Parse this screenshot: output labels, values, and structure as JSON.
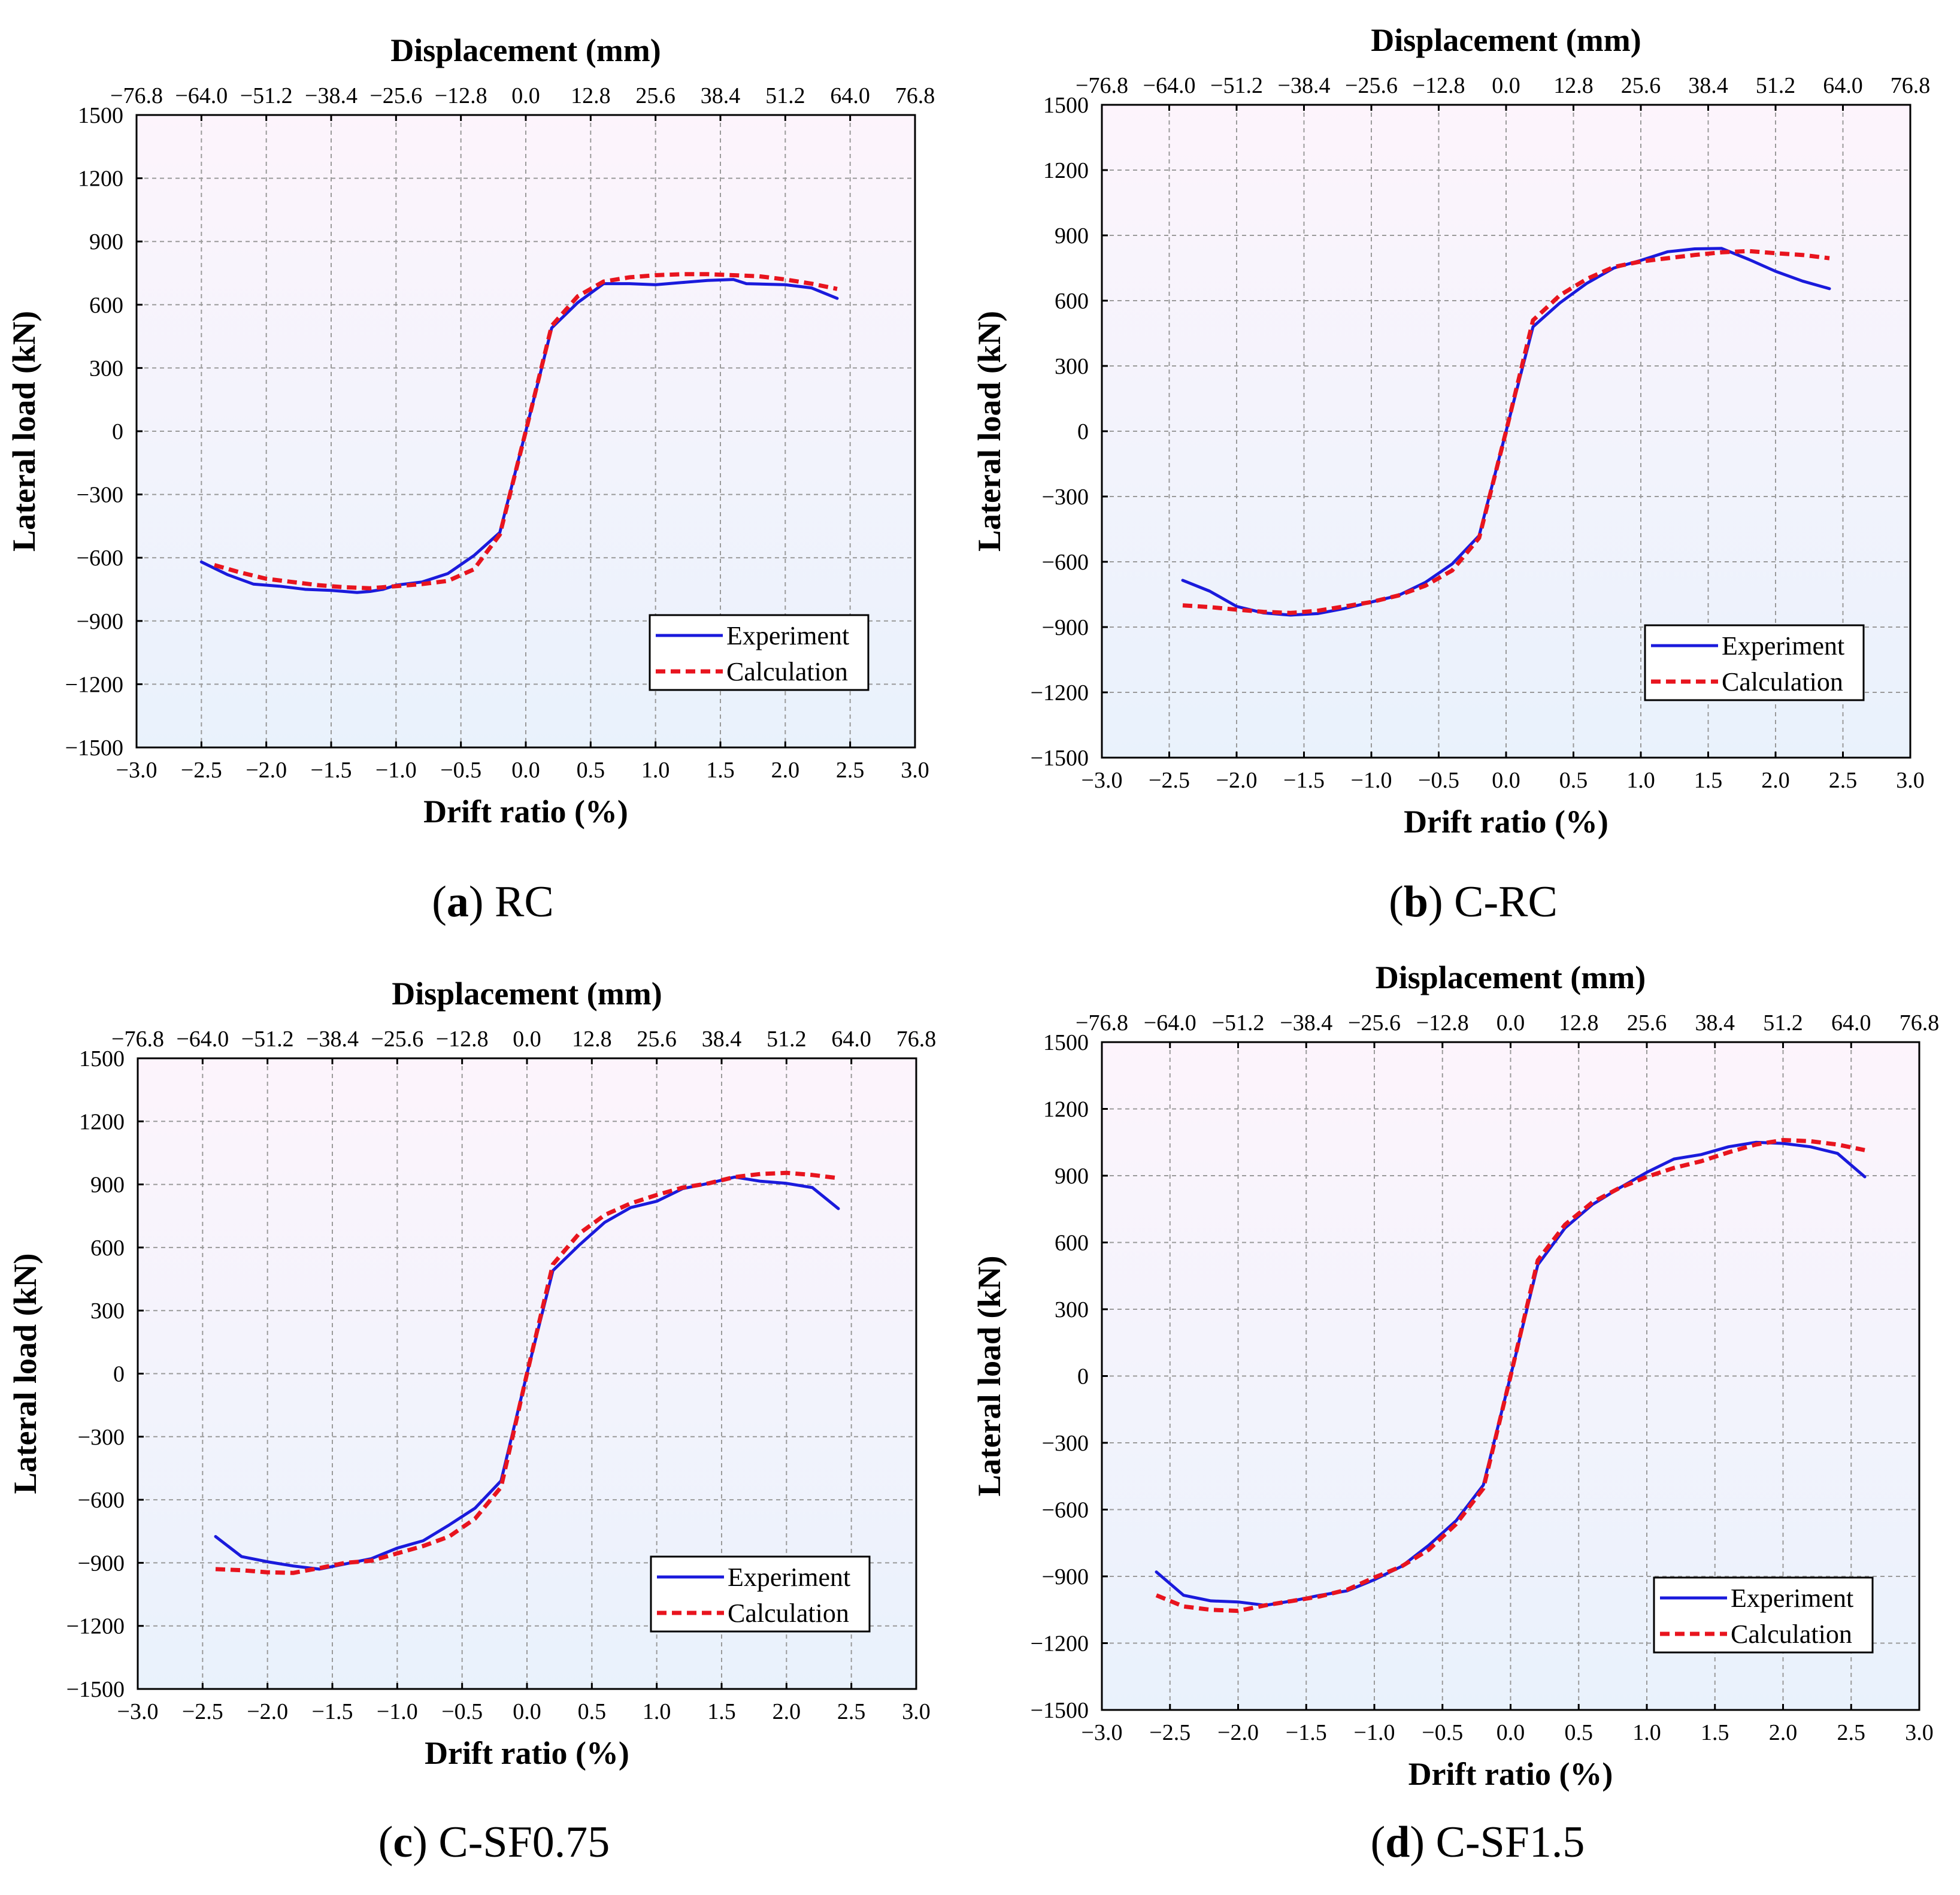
{
  "colors": {
    "experiment": "#1a1adc",
    "calculation": "#e8141e",
    "grid": "#9a9a9a",
    "bg_top": "#fdf4fc",
    "bg_bottom": "#e9f2fc"
  },
  "chart_data": [
    {
      "type": "line",
      "panel_letter": "a",
      "panel_name": "RC",
      "xlabel": "Drift ratio (%)",
      "x2label": "Displacement (mm)",
      "ylabel": "Lateral load  (kN)",
      "xlim": [
        -3.0,
        3.0
      ],
      "ylim": [
        -1500,
        1500
      ],
      "xticks": [
        "−3.0",
        "−2.5",
        "−2.0",
        "−1.5",
        "−1.0",
        "−0.5",
        "0.0",
        "0.5",
        "1.0",
        "1.5",
        "2.0",
        "2.5",
        "3.0"
      ],
      "x2ticks": [
        "−76.8",
        "−64.0",
        "−51.2",
        "−38.4",
        "−25.6",
        "−12.8",
        "0.0",
        "12.8",
        "25.6",
        "38.4",
        "51.2",
        "64.0",
        "76.8"
      ],
      "yticks": [
        "1500",
        "1200",
        "900",
        "600",
        "300",
        "0",
        "−300",
        "−600",
        "−900",
        "−1200",
        "−1500"
      ],
      "legend": [
        "Experiment",
        "Calculation"
      ],
      "series": [
        {
          "name": "Experiment",
          "points": [
            [
              -2.5,
              -620
            ],
            [
              -2.3,
              -680
            ],
            [
              -2.1,
              -725
            ],
            [
              -1.9,
              -735
            ],
            [
              -1.7,
              -750
            ],
            [
              -1.5,
              -755
            ],
            [
              -1.3,
              -765
            ],
            [
              -1.2,
              -760
            ],
            [
              -1.1,
              -750
            ],
            [
              -1.0,
              -730
            ],
            [
              -0.8,
              -715
            ],
            [
              -0.6,
              -675
            ],
            [
              -0.4,
              -590
            ],
            [
              -0.2,
              -480
            ],
            [
              0.0,
              0
            ],
            [
              0.2,
              490
            ],
            [
              0.4,
              610
            ],
            [
              0.6,
              700
            ],
            [
              0.8,
              700
            ],
            [
              1.0,
              695
            ],
            [
              1.2,
              705
            ],
            [
              1.4,
              715
            ],
            [
              1.6,
              720
            ],
            [
              1.7,
              700
            ],
            [
              2.0,
              695
            ],
            [
              2.2,
              680
            ],
            [
              2.4,
              630
            ]
          ]
        },
        {
          "name": "Calculation",
          "points": [
            [
              -2.4,
              -635
            ],
            [
              -2.2,
              -670
            ],
            [
              -2.0,
              -700
            ],
            [
              -1.8,
              -715
            ],
            [
              -1.6,
              -730
            ],
            [
              -1.4,
              -740
            ],
            [
              -1.2,
              -745
            ],
            [
              -1.0,
              -735
            ],
            [
              -0.8,
              -725
            ],
            [
              -0.6,
              -710
            ],
            [
              -0.4,
              -655
            ],
            [
              -0.2,
              -490
            ],
            [
              0.0,
              0
            ],
            [
              0.2,
              500
            ],
            [
              0.4,
              640
            ],
            [
              0.6,
              710
            ],
            [
              0.8,
              730
            ],
            [
              1.0,
              740
            ],
            [
              1.2,
              745
            ],
            [
              1.4,
              745
            ],
            [
              1.6,
              740
            ],
            [
              1.8,
              735
            ],
            [
              2.0,
              720
            ],
            [
              2.2,
              700
            ],
            [
              2.4,
              675
            ]
          ]
        }
      ]
    },
    {
      "type": "line",
      "panel_letter": "b",
      "panel_name": "C-RC",
      "xlabel": "Drift ratio (%)",
      "x2label": "Displacement (mm)",
      "ylabel": "Lateral load  (kN)",
      "xlim": [
        -3.0,
        3.0
      ],
      "ylim": [
        -1500,
        1500
      ],
      "xticks": [
        "−3.0",
        "−2.5",
        "−2.0",
        "−1.5",
        "−1.0",
        "−0.5",
        "0.0",
        "0.5",
        "1.0",
        "1.5",
        "2.0",
        "2.5",
        "3.0"
      ],
      "x2ticks": [
        "−76.8",
        "−64.0",
        "−51.2",
        "−38.4",
        "−25.6",
        "−12.8",
        "0.0",
        "12.8",
        "25.6",
        "38.4",
        "51.2",
        "64.0",
        "76.8"
      ],
      "yticks": [
        "1500",
        "1200",
        "900",
        "600",
        "300",
        "0",
        "−300",
        "−600",
        "−900",
        "−1200",
        "−1500"
      ],
      "legend": [
        "Experiment",
        "Calculation"
      ],
      "series": [
        {
          "name": "Experiment",
          "points": [
            [
              -2.4,
              -685
            ],
            [
              -2.2,
              -735
            ],
            [
              -2.0,
              -805
            ],
            [
              -1.8,
              -835
            ],
            [
              -1.6,
              -845
            ],
            [
              -1.4,
              -838
            ],
            [
              -1.2,
              -815
            ],
            [
              -1.0,
              -785
            ],
            [
              -0.8,
              -755
            ],
            [
              -0.6,
              -695
            ],
            [
              -0.4,
              -610
            ],
            [
              -0.2,
              -480
            ],
            [
              0.0,
              0
            ],
            [
              0.2,
              480
            ],
            [
              0.4,
              590
            ],
            [
              0.6,
              680
            ],
            [
              0.8,
              750
            ],
            [
              1.0,
              785
            ],
            [
              1.2,
              825
            ],
            [
              1.4,
              838
            ],
            [
              1.6,
              840
            ],
            [
              1.8,
              790
            ],
            [
              2.0,
              735
            ],
            [
              2.2,
              690
            ],
            [
              2.4,
              655
            ]
          ]
        },
        {
          "name": "Calculation",
          "points": [
            [
              -2.4,
              -800
            ],
            [
              -2.2,
              -808
            ],
            [
              -2.0,
              -820
            ],
            [
              -1.8,
              -830
            ],
            [
              -1.6,
              -835
            ],
            [
              -1.4,
              -825
            ],
            [
              -1.2,
              -805
            ],
            [
              -1.0,
              -785
            ],
            [
              -0.8,
              -755
            ],
            [
              -0.6,
              -710
            ],
            [
              -0.4,
              -640
            ],
            [
              -0.2,
              -490
            ],
            [
              0.0,
              0
            ],
            [
              0.2,
              510
            ],
            [
              0.4,
              625
            ],
            [
              0.6,
              700
            ],
            [
              0.8,
              755
            ],
            [
              1.0,
              780
            ],
            [
              1.2,
              795
            ],
            [
              1.4,
              810
            ],
            [
              1.6,
              822
            ],
            [
              1.8,
              828
            ],
            [
              2.0,
              818
            ],
            [
              2.2,
              810
            ],
            [
              2.4,
              795
            ]
          ]
        }
      ]
    },
    {
      "type": "line",
      "panel_letter": "c",
      "panel_name": "C-SF0.75",
      "xlabel": "Drift ratio (%)",
      "x2label": "Displacement (mm)",
      "ylabel": "Lateral load  (kN)",
      "xlim": [
        -3.0,
        3.0
      ],
      "ylim": [
        -1500,
        1500
      ],
      "xticks": [
        "−3.0",
        "−2.5",
        "−2.0",
        "−1.5",
        "−1.0",
        "−0.5",
        "0.0",
        "0.5",
        "1.0",
        "1.5",
        "2.0",
        "2.5",
        "3.0"
      ],
      "x2ticks": [
        "−76.8",
        "−64.0",
        "−51.2",
        "−38.4",
        "−25.6",
        "−12.8",
        "0.0",
        "12.8",
        "25.6",
        "38.4",
        "51.2",
        "64.0",
        "76.8"
      ],
      "yticks": [
        "1500",
        "1200",
        "900",
        "600",
        "300",
        "0",
        "−300",
        "−600",
        "−900",
        "−1200",
        "−1500"
      ],
      "legend": [
        "Experiment",
        "Calculation"
      ],
      "series": [
        {
          "name": "Experiment",
          "points": [
            [
              -2.4,
              -775
            ],
            [
              -2.2,
              -870
            ],
            [
              -2.0,
              -895
            ],
            [
              -1.8,
              -915
            ],
            [
              -1.6,
              -930
            ],
            [
              -1.4,
              -905
            ],
            [
              -1.2,
              -880
            ],
            [
              -1.0,
              -830
            ],
            [
              -0.8,
              -795
            ],
            [
              -0.6,
              -720
            ],
            [
              -0.4,
              -640
            ],
            [
              -0.2,
              -510
            ],
            [
              0.0,
              0
            ],
            [
              0.2,
              490
            ],
            [
              0.4,
              610
            ],
            [
              0.6,
              720
            ],
            [
              0.8,
              790
            ],
            [
              1.0,
              820
            ],
            [
              1.2,
              880
            ],
            [
              1.4,
              905
            ],
            [
              1.6,
              935
            ],
            [
              1.8,
              915
            ],
            [
              2.0,
              905
            ],
            [
              2.2,
              885
            ],
            [
              2.4,
              785
            ]
          ]
        },
        {
          "name": "Calculation",
          "points": [
            [
              -2.4,
              -930
            ],
            [
              -2.2,
              -935
            ],
            [
              -2.0,
              -945
            ],
            [
              -1.8,
              -948
            ],
            [
              -1.6,
              -925
            ],
            [
              -1.4,
              -900
            ],
            [
              -1.2,
              -890
            ],
            [
              -1.0,
              -855
            ],
            [
              -0.8,
              -820
            ],
            [
              -0.6,
              -775
            ],
            [
              -0.4,
              -690
            ],
            [
              -0.2,
              -540
            ],
            [
              0.0,
              0
            ],
            [
              0.2,
              520
            ],
            [
              0.4,
              665
            ],
            [
              0.6,
              755
            ],
            [
              0.8,
              810
            ],
            [
              1.0,
              850
            ],
            [
              1.2,
              885
            ],
            [
              1.4,
              905
            ],
            [
              1.6,
              935
            ],
            [
              1.8,
              950
            ],
            [
              2.0,
              955
            ],
            [
              2.2,
              945
            ],
            [
              2.4,
              930
            ]
          ]
        }
      ]
    },
    {
      "type": "line",
      "panel_letter": "d",
      "panel_name": "C-SF1.5",
      "xlabel": "Drift ratio (%)",
      "x2label": "Displacement (mm)",
      "ylabel": "Lateral load  (kN)",
      "xlim": [
        -3.0,
        3.0
      ],
      "ylim": [
        -1500,
        1500
      ],
      "xticks": [
        "−3.0",
        "−2.5",
        "−2.0",
        "−1.5",
        "−1.0",
        "−0.5",
        "0.0",
        "0.5",
        "1.0",
        "1.5",
        "2.0",
        "2.5",
        "3.0"
      ],
      "x2ticks": [
        "−76.8",
        "−64.0",
        "−51.2",
        "−38.4",
        "−25.6",
        "−12.8",
        "0.0",
        "12.8",
        "25.6",
        "38.4",
        "51.2",
        "64.0",
        "76.8"
      ],
      "yticks": [
        "1500",
        "1200",
        "900",
        "600",
        "300",
        "0",
        "−300",
        "−600",
        "−900",
        "−1200",
        "−1500"
      ],
      "legend": [
        "Experiment",
        "Calculation"
      ],
      "series": [
        {
          "name": "Experiment",
          "points": [
            [
              -2.6,
              -880
            ],
            [
              -2.4,
              -985
            ],
            [
              -2.2,
              -1010
            ],
            [
              -2.0,
              -1015
            ],
            [
              -1.8,
              -1030
            ],
            [
              -1.6,
              -1010
            ],
            [
              -1.4,
              -985
            ],
            [
              -1.2,
              -965
            ],
            [
              -1.0,
              -915
            ],
            [
              -0.8,
              -855
            ],
            [
              -0.6,
              -760
            ],
            [
              -0.4,
              -650
            ],
            [
              -0.2,
              -490
            ],
            [
              0.0,
              0
            ],
            [
              0.2,
              500
            ],
            [
              0.4,
              665
            ],
            [
              0.6,
              770
            ],
            [
              0.8,
              845
            ],
            [
              1.0,
              915
            ],
            [
              1.2,
              975
            ],
            [
              1.4,
              995
            ],
            [
              1.6,
              1030
            ],
            [
              1.8,
              1050
            ],
            [
              2.0,
              1045
            ],
            [
              2.2,
              1030
            ],
            [
              2.4,
              1000
            ],
            [
              2.6,
              895
            ]
          ]
        },
        {
          "name": "Calculation",
          "points": [
            [
              -2.6,
              -985
            ],
            [
              -2.4,
              -1035
            ],
            [
              -2.2,
              -1050
            ],
            [
              -2.0,
              -1055
            ],
            [
              -1.8,
              -1030
            ],
            [
              -1.6,
              -1010
            ],
            [
              -1.4,
              -990
            ],
            [
              -1.2,
              -960
            ],
            [
              -1.0,
              -905
            ],
            [
              -0.8,
              -855
            ],
            [
              -0.6,
              -780
            ],
            [
              -0.4,
              -665
            ],
            [
              -0.2,
              -505
            ],
            [
              0.0,
              0
            ],
            [
              0.2,
              520
            ],
            [
              0.4,
              680
            ],
            [
              0.6,
              780
            ],
            [
              0.8,
              845
            ],
            [
              1.0,
              895
            ],
            [
              1.2,
              935
            ],
            [
              1.4,
              965
            ],
            [
              1.6,
              1005
            ],
            [
              1.8,
              1040
            ],
            [
              2.0,
              1060
            ],
            [
              2.2,
              1055
            ],
            [
              2.4,
              1040
            ],
            [
              2.6,
              1015
            ]
          ]
        }
      ]
    }
  ]
}
